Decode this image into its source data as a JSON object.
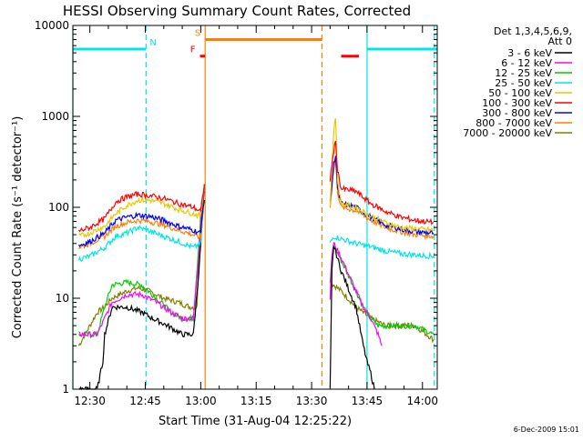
{
  "chart_data": {
    "type": "line",
    "title": "HESSI Observing Summary Count Rates, Corrected",
    "xlabel": "Start Time (31-Aug-04 12:25:22)",
    "ylabel": "Corrected Count Rate (s⁻¹ detector⁻¹)",
    "y_scale": "log",
    "ylim": [
      1,
      10000
    ],
    "xlim_minutes": [
      745.4,
      844.0
    ],
    "x_ticks": [
      {
        "label": "12:30",
        "minute": 750
      },
      {
        "label": "12:45",
        "minute": 765
      },
      {
        "label": "13:00",
        "minute": 780
      },
      {
        "label": "13:15",
        "minute": 795
      },
      {
        "label": "13:30",
        "minute": 810
      },
      {
        "label": "13:45",
        "minute": 825
      },
      {
        "label": "14:00",
        "minute": 840
      }
    ],
    "y_ticks": [
      {
        "label": "1",
        "value": 1
      },
      {
        "label": "10",
        "value": 10
      },
      {
        "label": "100",
        "value": 100
      },
      {
        "label": "1000",
        "value": 1000
      },
      {
        "label": "10000",
        "value": 10000
      }
    ],
    "legend": {
      "header": [
        "Det 1,3,4,5,6,9,",
        "Att 0"
      ],
      "placement": "right"
    },
    "series": [
      {
        "name": "3 - 6 keV",
        "color": "#000000",
        "points": [
          [
            747,
            1
          ],
          [
            752,
            1
          ],
          [
            753.5,
            2
          ],
          [
            754,
            4
          ],
          [
            756,
            8
          ],
          [
            760,
            8
          ],
          [
            764,
            7
          ],
          [
            767,
            6
          ],
          [
            771,
            5
          ],
          [
            775,
            4
          ],
          [
            778,
            4
          ],
          [
            779.5,
            20
          ],
          [
            780.5,
            80
          ],
          [
            781,
            120
          ]
        ],
        "points2": [
          [
            815,
            1
          ],
          [
            815.5,
            20
          ],
          [
            816,
            38
          ],
          [
            818,
            20
          ],
          [
            822,
            8
          ],
          [
            824,
            3
          ],
          [
            825,
            2
          ],
          [
            826,
            1.5
          ],
          [
            827,
            1
          ]
        ]
      },
      {
        "name": "6 - 12 keV",
        "color": "#ff00ff",
        "points": [
          [
            747,
            4
          ],
          [
            752,
            4
          ],
          [
            754,
            6
          ],
          [
            756,
            9
          ],
          [
            760,
            11
          ],
          [
            764,
            11
          ],
          [
            768,
            9
          ],
          [
            772,
            7
          ],
          [
            775,
            6
          ],
          [
            778,
            6
          ],
          [
            779.5,
            30
          ],
          [
            780.5,
            120
          ],
          [
            781,
            150
          ]
        ],
        "points2": [
          [
            815,
            10
          ],
          [
            815.5,
            30
          ],
          [
            816,
            40
          ],
          [
            818,
            28
          ],
          [
            822,
            12
          ],
          [
            824,
            8
          ],
          [
            826,
            6
          ],
          [
            828,
            4
          ],
          [
            829,
            3
          ]
        ]
      },
      {
        "name": "12 - 25 keV",
        "color": "#00cc00",
        "points": [
          [
            747,
            4
          ],
          [
            752,
            4
          ],
          [
            754,
            8
          ],
          [
            756,
            14
          ],
          [
            760,
            15
          ],
          [
            764,
            14
          ],
          [
            768,
            10
          ],
          [
            772,
            7
          ],
          [
            775,
            6
          ],
          [
            778,
            6
          ],
          [
            779.5,
            40
          ],
          [
            780.5,
            130
          ],
          [
            781,
            160
          ]
        ],
        "points2": [
          [
            815,
            14
          ],
          [
            815.5,
            30
          ],
          [
            816,
            38
          ],
          [
            818,
            26
          ],
          [
            822,
            12
          ],
          [
            824,
            8
          ],
          [
            826,
            6
          ],
          [
            828,
            5
          ],
          [
            838,
            5
          ],
          [
            843,
            4
          ]
        ]
      },
      {
        "name": "25 - 50 keV",
        "color": "#00e5e5",
        "points": [
          [
            747,
            27
          ],
          [
            750,
            29
          ],
          [
            754,
            36
          ],
          [
            757,
            48
          ],
          [
            760,
            52
          ],
          [
            763,
            60
          ],
          [
            766,
            55
          ],
          [
            770,
            48
          ],
          [
            774,
            42
          ],
          [
            778,
            36
          ],
          [
            780,
            40
          ],
          [
            781,
            180
          ]
        ],
        "points2": [
          [
            815,
            40
          ],
          [
            816,
            48
          ],
          [
            818,
            45
          ],
          [
            822,
            40
          ],
          [
            826,
            37
          ],
          [
            830,
            33
          ],
          [
            834,
            31
          ],
          [
            838,
            30
          ],
          [
            843,
            29
          ]
        ]
      },
      {
        "name": "50 - 100 keV",
        "color": "#e6c800",
        "points": [
          [
            747,
            48
          ],
          [
            750,
            52
          ],
          [
            754,
            62
          ],
          [
            757,
            85
          ],
          [
            760,
            105
          ],
          [
            763,
            120
          ],
          [
            766,
            120
          ],
          [
            770,
            110
          ],
          [
            774,
            95
          ],
          [
            778,
            85
          ],
          [
            780,
            80
          ],
          [
            781,
            180
          ]
        ],
        "points2": [
          [
            815,
            110
          ],
          [
            816,
            700
          ],
          [
            816.5,
            1000
          ],
          [
            817,
            200
          ],
          [
            818,
            110
          ],
          [
            822,
            100
          ],
          [
            826,
            80
          ],
          [
            830,
            68
          ],
          [
            834,
            60
          ],
          [
            838,
            58
          ],
          [
            843,
            56
          ]
        ]
      },
      {
        "name": "100 - 300 keV",
        "color": "#ff0000",
        "points": [
          [
            747,
            55
          ],
          [
            750,
            60
          ],
          [
            754,
            75
          ],
          [
            757,
            115
          ],
          [
            760,
            130
          ],
          [
            763,
            140
          ],
          [
            766,
            135
          ],
          [
            770,
            125
          ],
          [
            774,
            110
          ],
          [
            778,
            100
          ],
          [
            780,
            90
          ],
          [
            781,
            180
          ]
        ],
        "points2": [
          [
            815,
            200
          ],
          [
            816,
            420
          ],
          [
            816.5,
            520
          ],
          [
            817,
            260
          ],
          [
            818,
            160
          ],
          [
            822,
            150
          ],
          [
            826,
            110
          ],
          [
            830,
            90
          ],
          [
            834,
            78
          ],
          [
            838,
            72
          ],
          [
            843,
            68
          ]
        ]
      },
      {
        "name": "300 - 800 keV",
        "color": "#0000ff",
        "points": [
          [
            747,
            38
          ],
          [
            750,
            42
          ],
          [
            754,
            52
          ],
          [
            757,
            72
          ],
          [
            760,
            78
          ],
          [
            763,
            82
          ],
          [
            766,
            80
          ],
          [
            770,
            72
          ],
          [
            774,
            62
          ],
          [
            778,
            56
          ],
          [
            780,
            52
          ],
          [
            781,
            180
          ]
        ],
        "points2": [
          [
            815,
            110
          ],
          [
            816,
            300
          ],
          [
            816.5,
            380
          ],
          [
            817,
            160
          ],
          [
            818,
            110
          ],
          [
            822,
            100
          ],
          [
            826,
            78
          ],
          [
            830,
            64
          ],
          [
            834,
            58
          ],
          [
            838,
            54
          ],
          [
            843,
            52
          ]
        ]
      },
      {
        "name": "800 - 7000 keV",
        "color": "#ff8000",
        "points": [
          [
            747,
            36
          ],
          [
            750,
            40
          ],
          [
            754,
            48
          ],
          [
            757,
            62
          ],
          [
            760,
            68
          ],
          [
            763,
            72
          ],
          [
            766,
            70
          ],
          [
            770,
            64
          ],
          [
            774,
            56
          ],
          [
            778,
            50
          ],
          [
            780,
            46
          ],
          [
            781,
            180
          ]
        ],
        "points2": [
          [
            815,
            105
          ],
          [
            816,
            260
          ],
          [
            816.5,
            330
          ],
          [
            817,
            150
          ],
          [
            818,
            100
          ],
          [
            822,
            92
          ],
          [
            826,
            72
          ],
          [
            830,
            60
          ],
          [
            834,
            54
          ],
          [
            838,
            50
          ],
          [
            843,
            48
          ]
        ]
      },
      {
        "name": "7000 - 20000 keV",
        "color": "#808000",
        "points": [
          [
            747,
            3
          ],
          [
            750,
            5
          ],
          [
            752,
            7
          ],
          [
            754,
            8
          ],
          [
            756,
            10
          ],
          [
            760,
            12
          ],
          [
            763,
            13
          ],
          [
            766,
            12
          ],
          [
            770,
            10
          ],
          [
            774,
            9
          ],
          [
            777,
            8
          ],
          [
            779,
            8
          ],
          [
            780,
            100
          ]
        ],
        "points2": [
          [
            815,
            15
          ],
          [
            816,
            14
          ],
          [
            818,
            12
          ],
          [
            822,
            8
          ],
          [
            826,
            6
          ],
          [
            830,
            5
          ],
          [
            838,
            5
          ],
          [
            843,
            3.5
          ]
        ]
      }
    ],
    "flag_bars": [
      {
        "label": "N",
        "color": "#00e5e5",
        "start": 745.4,
        "end": 765.2,
        "value": 5500
      },
      {
        "label": "N",
        "color": "#00e5e5",
        "start": 825.0,
        "end": 844.0,
        "value": 5500
      },
      {
        "label": "S",
        "color": "#ff8000",
        "start": 781.2,
        "end": 812.8,
        "value": 7000
      },
      {
        "label": "F",
        "color": "#ff0000",
        "start": 779.8,
        "end": 781.2,
        "value": 4600
      },
      {
        "label": "",
        "color": "#ff0000",
        "start": 818.0,
        "end": 822.8,
        "value": 4600
      }
    ],
    "vertical_lines": [
      {
        "minute": 745.4,
        "color": "#00e5e5",
        "dashed": false
      },
      {
        "minute": 765.2,
        "color": "#00e5e5",
        "dashed": true
      },
      {
        "minute": 781.2,
        "color": "#ff8000",
        "dashed": false
      },
      {
        "minute": 812.8,
        "color": "#ff8000",
        "dashed": true
      },
      {
        "minute": 825.0,
        "color": "#00e5e5",
        "dashed": false
      },
      {
        "minute": 843.2,
        "color": "#00e5e5",
        "dashed": true
      }
    ]
  },
  "footer": {
    "timestamp": "6-Dec-2009 15:01"
  }
}
